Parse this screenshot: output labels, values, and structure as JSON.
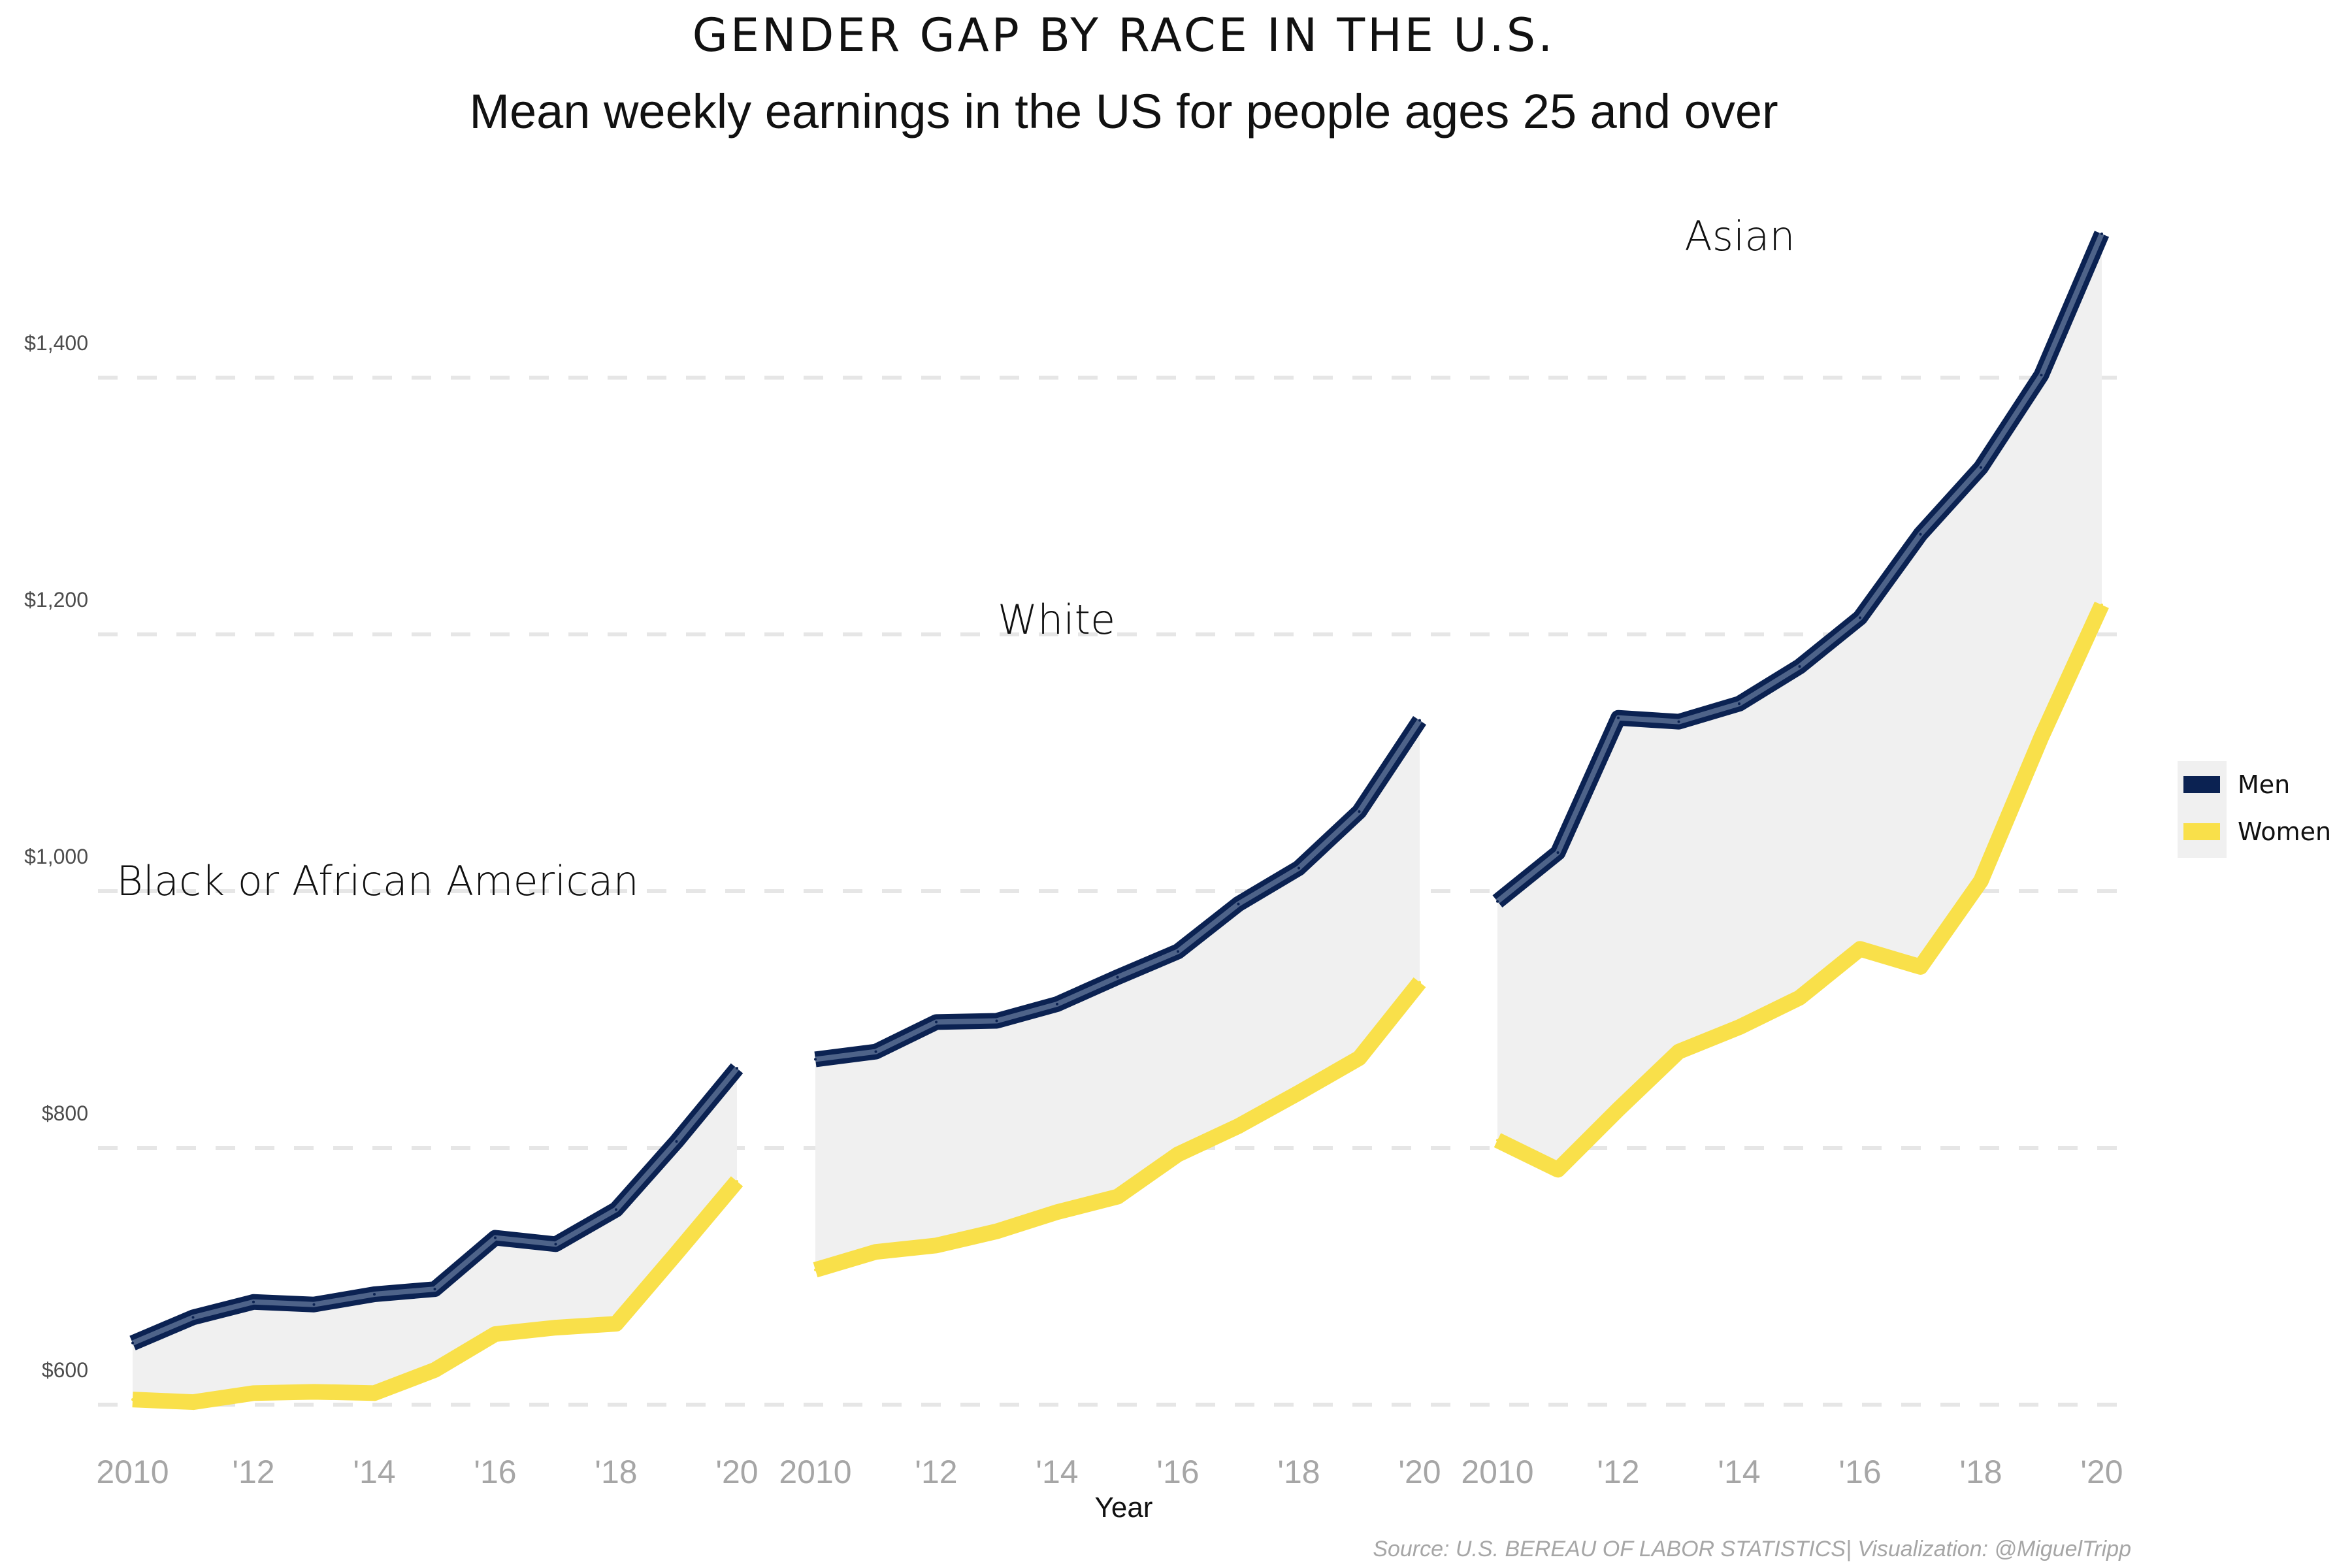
{
  "chart_data": {
    "type": "line",
    "title": "GENDER GAP BY RACE IN THE U.S.",
    "subtitle": "Mean weekly earnings in the US for people ages 25 and over",
    "xlabel": "Year",
    "ylabel": "",
    "ylim": [
      555,
      1540
    ],
    "yticks": [
      {
        "value": 600,
        "label": "$600"
      },
      {
        "value": 800,
        "label": "$800"
      },
      {
        "value": 1000,
        "label": "$1,000"
      },
      {
        "value": 1200,
        "label": "$1,200"
      },
      {
        "value": 1400,
        "label": "$1,400"
      }
    ],
    "xlim": [
      2010,
      2020
    ],
    "xticks": [
      {
        "value": 2010,
        "label": "2010"
      },
      {
        "value": 2012,
        "label": "'12"
      },
      {
        "value": 2014,
        "label": "'14"
      },
      {
        "value": 2016,
        "label": "'16"
      },
      {
        "value": 2018,
        "label": "'18"
      },
      {
        "value": 2020,
        "label": "'20"
      }
    ],
    "grid": "horizontal dashed",
    "legend": {
      "position": "right",
      "entries": [
        {
          "name": "Men",
          "color": "#0b2252"
        },
        {
          "name": "Women",
          "color": "#f9e04a"
        }
      ]
    },
    "colors": {
      "men": "#0b2252",
      "women": "#f9e04a",
      "gap_fill": "#f0f0f0"
    },
    "x": [
      2010,
      2011,
      2012,
      2013,
      2014,
      2015,
      2016,
      2017,
      2018,
      2019,
      2020
    ],
    "panels": [
      {
        "label": "Black or African American",
        "men": [
          648,
          668,
          680,
          678,
          686,
          690,
          730,
          725,
          752,
          805,
          862
        ],
        "women": [
          604,
          602,
          609,
          610,
          609,
          627,
          655,
          660,
          663,
          718,
          774
        ]
      },
      {
        "label": "White",
        "men": [
          869,
          875,
          898,
          899,
          912,
          933,
          953,
          990,
          1018,
          1062,
          1133
        ],
        "women": [
          705,
          719,
          724,
          735,
          750,
          762,
          795,
          817,
          843,
          870,
          929
        ]
      },
      {
        "label": "Asian",
        "men": [
          992,
          1030,
          1135,
          1132,
          1146,
          1175,
          1213,
          1278,
          1330,
          1402,
          1512
        ],
        "women": [
          806,
          783,
          830,
          875,
          894,
          917,
          955,
          941,
          1008,
          1120,
          1223
        ]
      }
    ]
  },
  "caption": "Source: U.S. BEREAU OF LABOR STATISTICS| Visualization: @MiguelTripp"
}
